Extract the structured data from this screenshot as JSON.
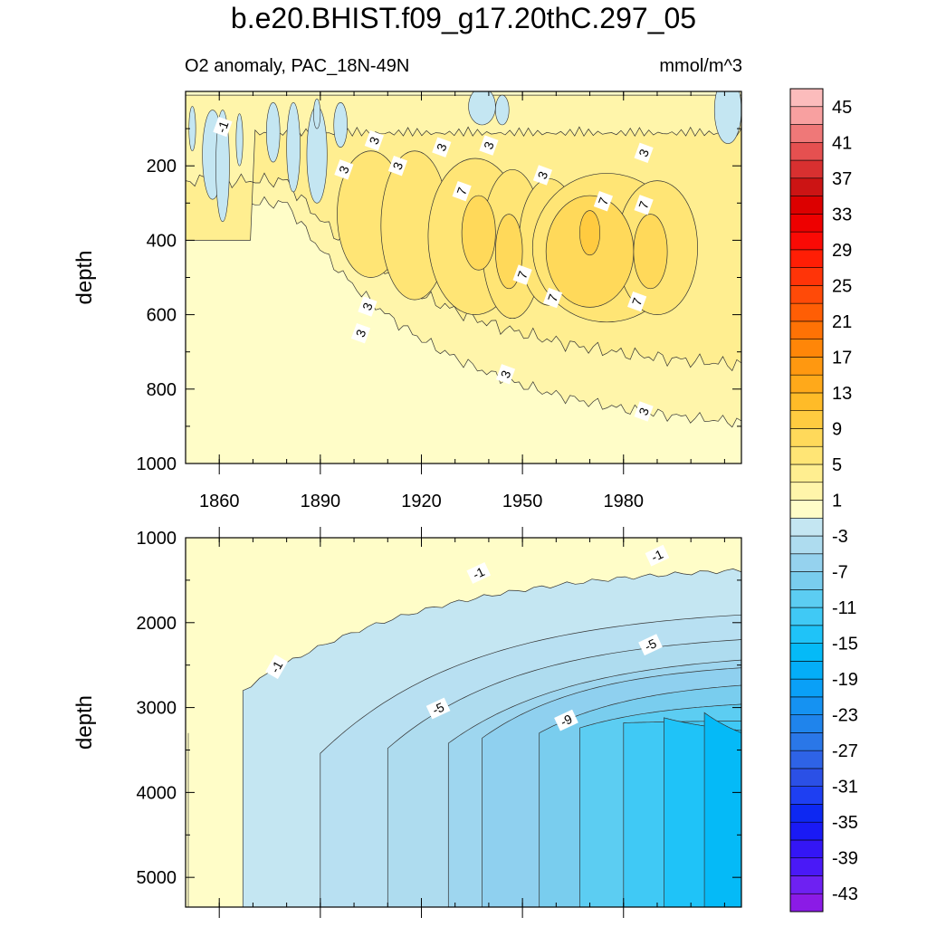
{
  "title": "b.e20.BHIST.f09_g17.20thC.297_05",
  "subtitle_left": "O2 anomaly, PAC_18N-49N",
  "subtitle_right": "mmol/m^3",
  "colorbar": {
    "levels": [
      -43,
      -41,
      -39,
      -37,
      -35,
      -33,
      -31,
      -29,
      -27,
      -25,
      -23,
      -21,
      -19,
      -17,
      -15,
      -13,
      -11,
      -9,
      -7,
      -5,
      -3,
      -1,
      1,
      3,
      5,
      7,
      9,
      11,
      13,
      15,
      17,
      19,
      21,
      23,
      25,
      27,
      29,
      31,
      33,
      35,
      37,
      39,
      41,
      43,
      45,
      47
    ],
    "labels": [
      "45",
      "41",
      "37",
      "33",
      "29",
      "25",
      "21",
      "17",
      "13",
      "9",
      "5",
      "1",
      "-3",
      "-7",
      "-11",
      "-15",
      "-19",
      "-23",
      "-27",
      "-31",
      "-35",
      "-39",
      "-43"
    ],
    "colors": {
      "neg": [
        "#8b1be6",
        "#6e21f2",
        "#4a19f7",
        "#3416f5",
        "#1a1af5",
        "#0d28f2",
        "#1e3ff2",
        "#2b50e6",
        "#2e63e6",
        "#2a77e8",
        "#1f84ec",
        "#1592f2",
        "#0aa0f7",
        "#04aef8",
        "#05baf7",
        "#1fc3f8",
        "#40c9f5",
        "#5ccdf2",
        "#79cdee",
        "#95d2ee",
        "#aedcef",
        "#c4e6f2"
      ],
      "pos": [
        "#fffdc8",
        "#fff5aa",
        "#ffee90",
        "#ffe575",
        "#ffd95a",
        "#ffcb40",
        "#ffbb28",
        "#ffa91a",
        "#ff9810",
        "#ff8608",
        "#ff7205",
        "#ff5e05",
        "#ff4a08",
        "#ff3408",
        "#ff1e05",
        "#fa0a05",
        "#ee0000",
        "#dc0000",
        "#cc1414",
        "#d83030",
        "#e55050",
        "#ef7878",
        "#f8a0a0",
        "#fcbcbc"
      ]
    }
  },
  "chart_data": [
    {
      "type": "contour",
      "panel": "upper",
      "ylabel": "depth",
      "xlabel": "",
      "xlim": [
        1850,
        2015
      ],
      "ylim": [
        1000,
        0
      ],
      "x_ticks": [
        1860,
        1890,
        1920,
        1950,
        1980
      ],
      "x_tick_labels": [
        "1860",
        "1890",
        "1920",
        "1950",
        "1980"
      ],
      "y_ticks": [
        200,
        400,
        600,
        800,
        1000
      ],
      "y_tick_labels": [
        "200",
        "400",
        "600",
        "800",
        "1000"
      ],
      "contour_labels": [
        {
          "text": "-1",
          "x": 1861,
          "y": 95
        },
        {
          "text": "3",
          "x": 1906,
          "y": 132
        },
        {
          "text": "3",
          "x": 1926,
          "y": 150
        },
        {
          "text": "3",
          "x": 1940,
          "y": 145
        },
        {
          "text": "3",
          "x": 1986,
          "y": 165
        },
        {
          "text": "3",
          "x": 1897,
          "y": 210
        },
        {
          "text": "3",
          "x": 1913,
          "y": 200
        },
        {
          "text": "3",
          "x": 1956,
          "y": 225
        },
        {
          "text": "7",
          "x": 1932,
          "y": 268
        },
        {
          "text": "7",
          "x": 1974,
          "y": 295
        },
        {
          "text": "7",
          "x": 1986,
          "y": 305
        },
        {
          "text": "7",
          "x": 1950,
          "y": 493
        },
        {
          "text": "7",
          "x": 1959,
          "y": 555
        },
        {
          "text": "7",
          "x": 1984,
          "y": 565
        },
        {
          "text": "3",
          "x": 1904,
          "y": 578
        },
        {
          "text": "3",
          "x": 1902,
          "y": 650
        },
        {
          "text": "3",
          "x": 1945,
          "y": 760
        },
        {
          "text": "3",
          "x": 1986,
          "y": 860
        }
      ]
    },
    {
      "type": "contour",
      "panel": "lower",
      "ylabel": "depth",
      "xlabel": "",
      "xlim": [
        1850,
        2015
      ],
      "ylim": [
        5350,
        1000
      ],
      "y_ticks": [
        1000,
        2000,
        3000,
        4000,
        5000
      ],
      "y_tick_labels": [
        "1000",
        "2000",
        "3000",
        "4000",
        "5000"
      ],
      "contour_labels": [
        {
          "text": "-1",
          "x": 1937,
          "y": 1415
        },
        {
          "text": "-1",
          "x": 1990,
          "y": 1210
        },
        {
          "text": "-1",
          "x": 1877,
          "y": 2520
        },
        {
          "text": "-5",
          "x": 1988,
          "y": 2260
        },
        {
          "text": "-5",
          "x": 1925,
          "y": 3010
        },
        {
          "text": "-9",
          "x": 1963,
          "y": 3150
        }
      ]
    }
  ]
}
